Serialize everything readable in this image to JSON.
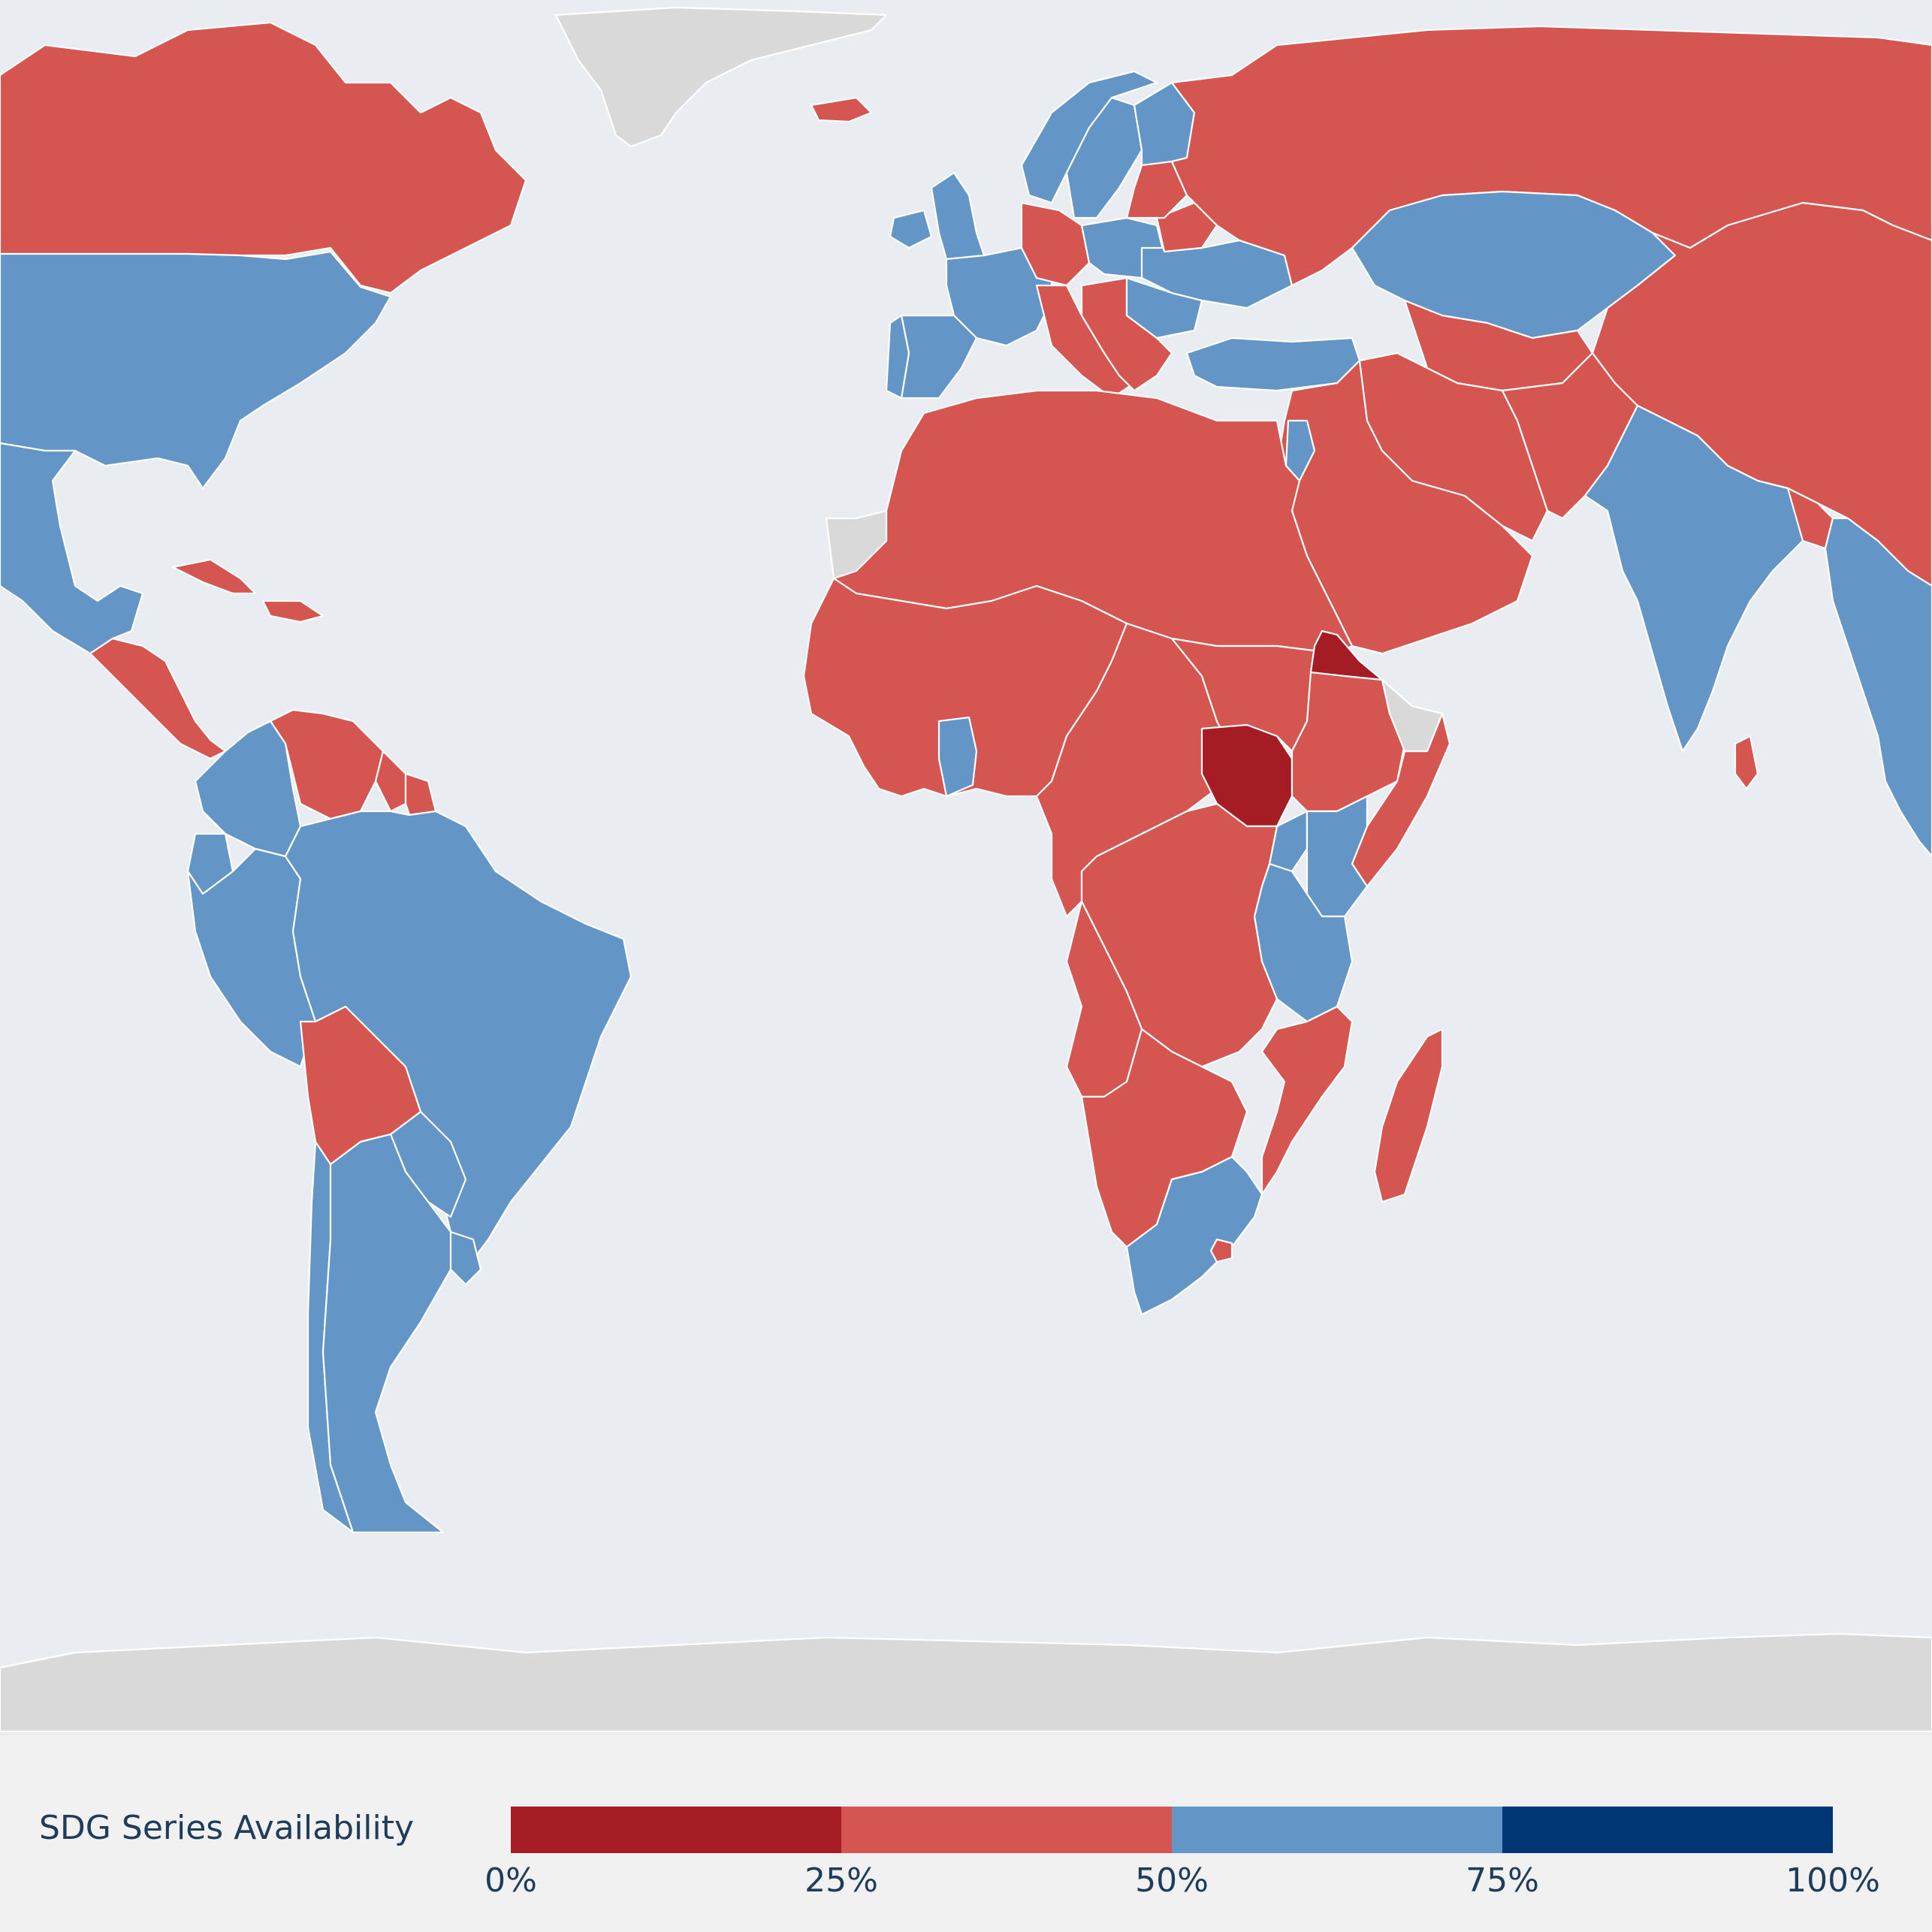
{
  "map": {
    "colors": {
      "ocean": "#e9edf1",
      "no_data": "#d9d9d9",
      "border": "#ffffff",
      "bin_0_25": "#a61c24",
      "bin_25_50": "#d55650",
      "bin_50_75": "#6396c7",
      "bin_75_100": "#003673"
    },
    "regions": [
      {
        "name": "Canada",
        "bin": "25-50"
      },
      {
        "name": "United States",
        "bin": "50-75"
      },
      {
        "name": "Mexico",
        "bin": "50-75"
      },
      {
        "name": "Central America",
        "bin": "25-50"
      },
      {
        "name": "Caribbean",
        "bin": "25-50"
      },
      {
        "name": "Venezuela",
        "bin": "25-50"
      },
      {
        "name": "Guyana",
        "bin": "25-50"
      },
      {
        "name": "Suriname",
        "bin": "25-50"
      },
      {
        "name": "Colombia",
        "bin": "50-75"
      },
      {
        "name": "Ecuador",
        "bin": "50-75"
      },
      {
        "name": "Peru",
        "bin": "50-75"
      },
      {
        "name": "Brazil",
        "bin": "50-75"
      },
      {
        "name": "Bolivia",
        "bin": "25-50"
      },
      {
        "name": "Paraguay",
        "bin": "50-75"
      },
      {
        "name": "Chile",
        "bin": "50-75"
      },
      {
        "name": "Argentina",
        "bin": "50-75"
      },
      {
        "name": "Uruguay",
        "bin": "50-75"
      },
      {
        "name": "Greenland",
        "bin": "none"
      },
      {
        "name": "Iceland",
        "bin": "25-50"
      },
      {
        "name": "Norway",
        "bin": "50-75"
      },
      {
        "name": "Sweden",
        "bin": "50-75"
      },
      {
        "name": "Finland",
        "bin": "50-75"
      },
      {
        "name": "United Kingdom",
        "bin": "50-75"
      },
      {
        "name": "Ireland",
        "bin": "50-75"
      },
      {
        "name": "France",
        "bin": "50-75"
      },
      {
        "name": "Spain",
        "bin": "50-75"
      },
      {
        "name": "Portugal",
        "bin": "50-75"
      },
      {
        "name": "Germany",
        "bin": "25-50"
      },
      {
        "name": "Poland",
        "bin": "50-75"
      },
      {
        "name": "Italy",
        "bin": "25-50"
      },
      {
        "name": "Balkans",
        "bin": "25-50"
      },
      {
        "name": "Romania",
        "bin": "50-75"
      },
      {
        "name": "Ukraine",
        "bin": "50-75"
      },
      {
        "name": "Belarus",
        "bin": "25-50"
      },
      {
        "name": "Baltics",
        "bin": "25-50"
      },
      {
        "name": "Turkey",
        "bin": "50-75"
      },
      {
        "name": "Russia",
        "bin": "25-50"
      },
      {
        "name": "Kazakhstan",
        "bin": "50-75"
      },
      {
        "name": "Central Asia",
        "bin": "25-50"
      },
      {
        "name": "Middle East",
        "bin": "25-50"
      },
      {
        "name": "Jordan",
        "bin": "50-75"
      },
      {
        "name": "Iran",
        "bin": "25-50"
      },
      {
        "name": "Afghanistan & Pakistan",
        "bin": "25-50"
      },
      {
        "name": "China",
        "bin": "25-50"
      },
      {
        "name": "India",
        "bin": "50-75"
      },
      {
        "name": "Sri Lanka",
        "bin": "25-50"
      },
      {
        "name": "Bangladesh",
        "bin": "25-50"
      },
      {
        "name": "Myanmar & Southeast Asia",
        "bin": "50-75"
      },
      {
        "name": "North Africa",
        "bin": "25-50"
      },
      {
        "name": "West Africa",
        "bin": "25-50"
      },
      {
        "name": "Western Sahara",
        "bin": "none"
      },
      {
        "name": "Ghana",
        "bin": "50-75"
      },
      {
        "name": "Central Africa",
        "bin": "25-50"
      },
      {
        "name": "Sudan",
        "bin": "25-50"
      },
      {
        "name": "South Sudan",
        "bin": "0-25"
      },
      {
        "name": "Eritrea",
        "bin": "0-25"
      },
      {
        "name": "Ethiopia",
        "bin": "25-50"
      },
      {
        "name": "Somalia",
        "bin": "25-50"
      },
      {
        "name": "Somaliland",
        "bin": "none"
      },
      {
        "name": "Uganda",
        "bin": "50-75"
      },
      {
        "name": "Kenya",
        "bin": "50-75"
      },
      {
        "name": "Tanzania",
        "bin": "50-75"
      },
      {
        "name": "DR Congo & Zambia",
        "bin": "25-50"
      },
      {
        "name": "Angola",
        "bin": "25-50"
      },
      {
        "name": "Namibia & Botswana",
        "bin": "25-50"
      },
      {
        "name": "Mozambique",
        "bin": "25-50"
      },
      {
        "name": "South Africa",
        "bin": "50-75"
      },
      {
        "name": "Lesotho",
        "bin": "25-50"
      },
      {
        "name": "Madagascar",
        "bin": "25-50"
      },
      {
        "name": "Antarctica",
        "bin": "none"
      }
    ]
  },
  "legend": {
    "title": "SDG Series Availability",
    "bins": [
      {
        "color": "#a61c24"
      },
      {
        "color": "#d55650"
      },
      {
        "color": "#6396c7"
      },
      {
        "color": "#003673"
      }
    ],
    "ticks": [
      "0%",
      "25%",
      "50%",
      "75%",
      "100%"
    ]
  }
}
